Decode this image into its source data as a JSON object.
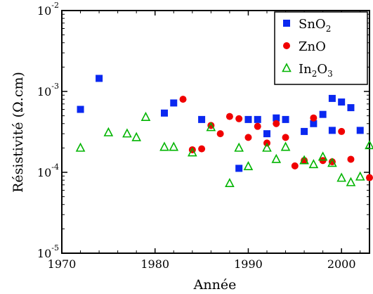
{
  "chart_data": {
    "type": "scatter",
    "title": "",
    "xlabel": "Année",
    "ylabel": "Résistivité (Ω.cm)",
    "xlim": [
      1970,
      2003
    ],
    "ylim": [
      1e-05,
      0.01
    ],
    "yscale": "log",
    "x_ticks": [
      1970,
      1980,
      1990,
      2000
    ],
    "x_tick_labels": [
      "1970",
      "1980",
      "1990",
      "2000"
    ],
    "y_ticks": [
      1e-05,
      0.0001,
      0.001,
      0.01
    ],
    "y_tick_labels": [
      {
        "base": "10",
        "exp": "-5"
      },
      {
        "base": "10",
        "exp": "-4"
      },
      {
        "base": "10",
        "exp": "-3"
      },
      {
        "base": "10",
        "exp": "-2"
      }
    ],
    "grid": false,
    "legend_position": "top-right",
    "series": [
      {
        "name": "SnO2",
        "legend": {
          "base": "SnO",
          "sub": "2",
          "rest": ""
        },
        "marker": "square",
        "color": "#0a28f0",
        "points": [
          [
            1972,
            0.0006
          ],
          [
            1974,
            0.00145
          ],
          [
            1981,
            0.00054
          ],
          [
            1982,
            0.00072
          ],
          [
            1985,
            0.00045
          ],
          [
            1989,
            0.000112
          ],
          [
            1990,
            0.00045
          ],
          [
            1991,
            0.00045
          ],
          [
            1992,
            0.0003
          ],
          [
            1993,
            0.00047
          ],
          [
            1994,
            0.00045
          ],
          [
            1996,
            0.00032
          ],
          [
            1997,
            0.0004
          ],
          [
            1998,
            0.00052
          ],
          [
            1999,
            0.00033
          ],
          [
            1999,
            0.00082
          ],
          [
            2000,
            0.00074
          ],
          [
            2001,
            0.00063
          ],
          [
            2002,
            0.00033
          ]
        ]
      },
      {
        "name": "ZnO",
        "legend": {
          "base": "ZnO",
          "sub": "",
          "rest": ""
        },
        "marker": "circle",
        "color": "#f00000",
        "points": [
          [
            1983,
            0.0008
          ],
          [
            1984,
            0.00019
          ],
          [
            1985,
            0.000195
          ],
          [
            1986,
            0.00038
          ],
          [
            1987,
            0.0003
          ],
          [
            1988,
            0.00049
          ],
          [
            1989,
            0.00046
          ],
          [
            1990,
            0.00027
          ],
          [
            1991,
            0.00037
          ],
          [
            1992,
            0.00023
          ],
          [
            1993,
            0.0004
          ],
          [
            1994,
            0.00027
          ],
          [
            1995,
            0.00012
          ],
          [
            1996,
            0.00014
          ],
          [
            1997,
            0.00047
          ],
          [
            1998,
            0.00014
          ],
          [
            1999,
            0.000135
          ],
          [
            2000,
            0.00032
          ],
          [
            2001,
            0.000145
          ],
          [
            2003,
            8.6e-05
          ]
        ]
      },
      {
        "name": "In2O3",
        "legend": {
          "base": "In",
          "sub": "2",
          "rest": "O",
          "sub2": "3"
        },
        "marker": "triangle",
        "color": "#00b400",
        "points": [
          [
            1972,
            0.0002
          ],
          [
            1975,
            0.00031
          ],
          [
            1977,
            0.0003
          ],
          [
            1978,
            0.00027
          ],
          [
            1979,
            0.00048
          ],
          [
            1981,
            0.000205
          ],
          [
            1982,
            0.000205
          ],
          [
            1984,
            0.000175
          ],
          [
            1986,
            0.00036
          ],
          [
            1988,
            7.3e-05
          ],
          [
            1989,
            0.0002
          ],
          [
            1990,
            0.000118
          ],
          [
            1992,
            0.0002
          ],
          [
            1993,
            0.000145
          ],
          [
            1994,
            0.000205
          ],
          [
            1996,
            0.00014
          ],
          [
            1997,
            0.000125
          ],
          [
            1998,
            0.000155
          ],
          [
            1999,
            0.00013
          ],
          [
            2000,
            8.5e-05
          ],
          [
            2001,
            7.5e-05
          ],
          [
            2002,
            8.8e-05
          ],
          [
            2003,
            0.000215
          ]
        ]
      }
    ]
  }
}
